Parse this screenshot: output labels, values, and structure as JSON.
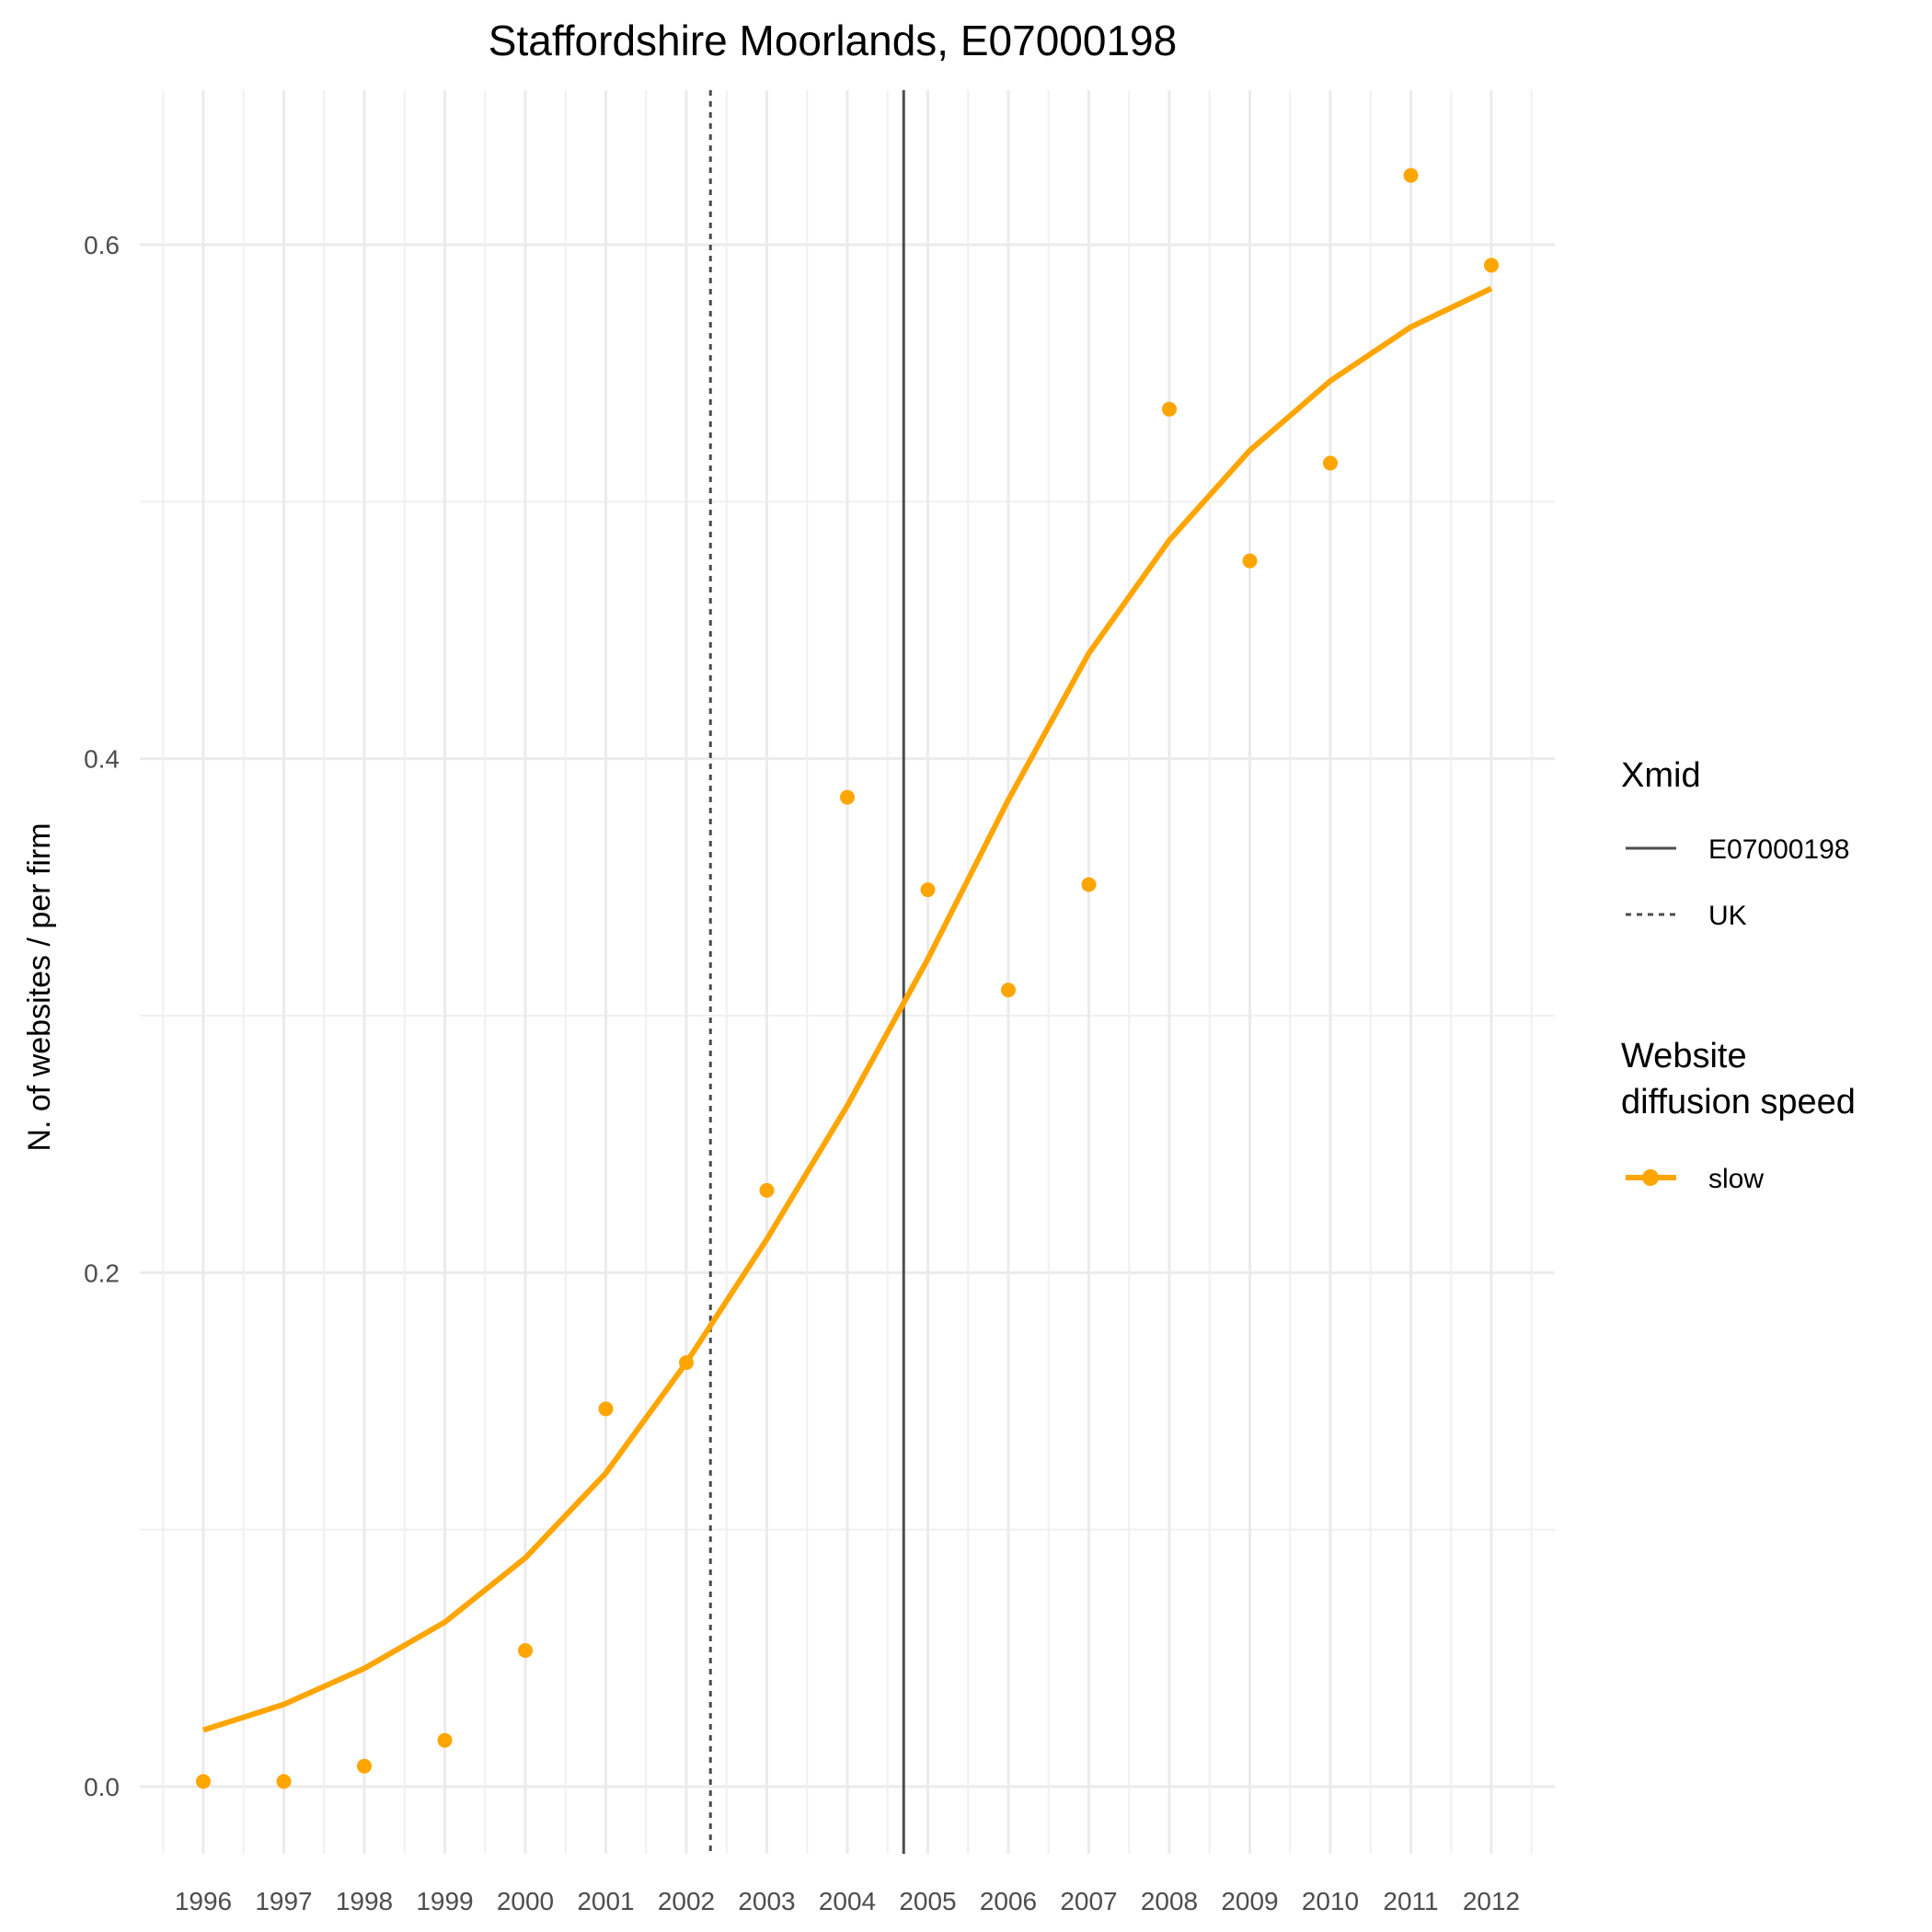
{
  "chart_data": {
    "type": "line",
    "title": "Staffordshire Moorlands, E07000198",
    "xlabel": "",
    "ylabel": "N. of websites / per firm",
    "x": [
      1996,
      1997,
      1998,
      1999,
      2000,
      2001,
      2002,
      2003,
      2004,
      2005,
      2006,
      2007,
      2008,
      2009,
      2010,
      2011,
      2012
    ],
    "x_tick_labels": [
      "1996",
      "1997",
      "1998",
      "1999",
      "2000",
      "2001",
      "2002",
      "2003",
      "2004",
      "2005",
      "2006",
      "2007",
      "2008",
      "2009",
      "2010",
      "2011",
      "2012"
    ],
    "xlim": [
      1995.5,
      2012.5
    ],
    "ylim": [
      -0.02,
      0.67
    ],
    "y_ticks": [
      0.0,
      0.2,
      0.4,
      0.6
    ],
    "y_tick_labels": [
      "0.0",
      "0.2",
      "0.4",
      "0.6"
    ],
    "grid": true,
    "series": [
      {
        "name": "slow",
        "kind": "fitted-line",
        "color": "#FFA500",
        "values": [
          0.022,
          0.032,
          0.046,
          0.064,
          0.089,
          0.122,
          0.165,
          0.213,
          0.265,
          0.322,
          0.384,
          0.441,
          0.485,
          0.52,
          0.547,
          0.568,
          0.583
        ]
      },
      {
        "name": "slow",
        "kind": "points",
        "color": "#FFA500",
        "values": [
          0.002,
          0.002,
          0.008,
          0.018,
          0.053,
          0.147,
          0.165,
          0.232,
          0.385,
          0.349,
          0.31,
          0.351,
          0.536,
          0.477,
          0.515,
          0.627,
          0.592
        ]
      }
    ],
    "vlines": [
      {
        "name": "E07000198",
        "x": 2004.7,
        "style": "solid",
        "color": "#4d4d4d"
      },
      {
        "name": "UK",
        "x": 2002.3,
        "style": "dashed",
        "color": "#4d4d4d"
      }
    ],
    "legend": {
      "placement": "right",
      "groups": [
        {
          "title": "Xmid",
          "items": [
            "E07000198",
            "UK"
          ]
        },
        {
          "title_lines": [
            "Website",
            "diffusion speed"
          ],
          "items": [
            "slow"
          ]
        }
      ]
    }
  }
}
